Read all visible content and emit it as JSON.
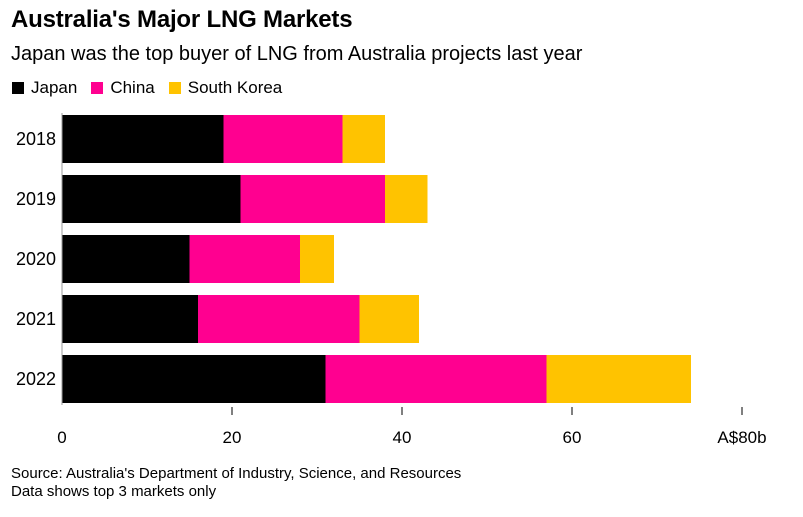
{
  "chart_data": {
    "type": "bar",
    "orientation": "horizontal",
    "stacked": true,
    "title": "Australia's Major LNG Markets",
    "subtitle": "Japan was the top buyer of LNG from Australia projects last year",
    "categories": [
      "2018",
      "2019",
      "2020",
      "2021",
      "2022"
    ],
    "series": [
      {
        "name": "Japan",
        "color": "#000000",
        "values": [
          19,
          21,
          15,
          16,
          31
        ]
      },
      {
        "name": "China",
        "color": "#FF0090",
        "values": [
          14,
          17,
          13,
          19,
          26
        ]
      },
      {
        "name": "South Korea",
        "color": "#FFC300",
        "values": [
          5,
          5,
          4,
          7,
          17
        ]
      }
    ],
    "xlim": [
      0,
      80
    ],
    "xticks": [
      0,
      20,
      40,
      60,
      80
    ],
    "xtick_labels": [
      "0",
      "20",
      "40",
      "60",
      "A$80b"
    ],
    "xlabel": "",
    "ylabel": "",
    "unit": "A$ billion",
    "legend_position": "top-left",
    "grid": false
  },
  "footer": {
    "source": "Source: Australia's Department of Industry, Science, and Resources",
    "note": "Data shows top 3 markets only"
  }
}
